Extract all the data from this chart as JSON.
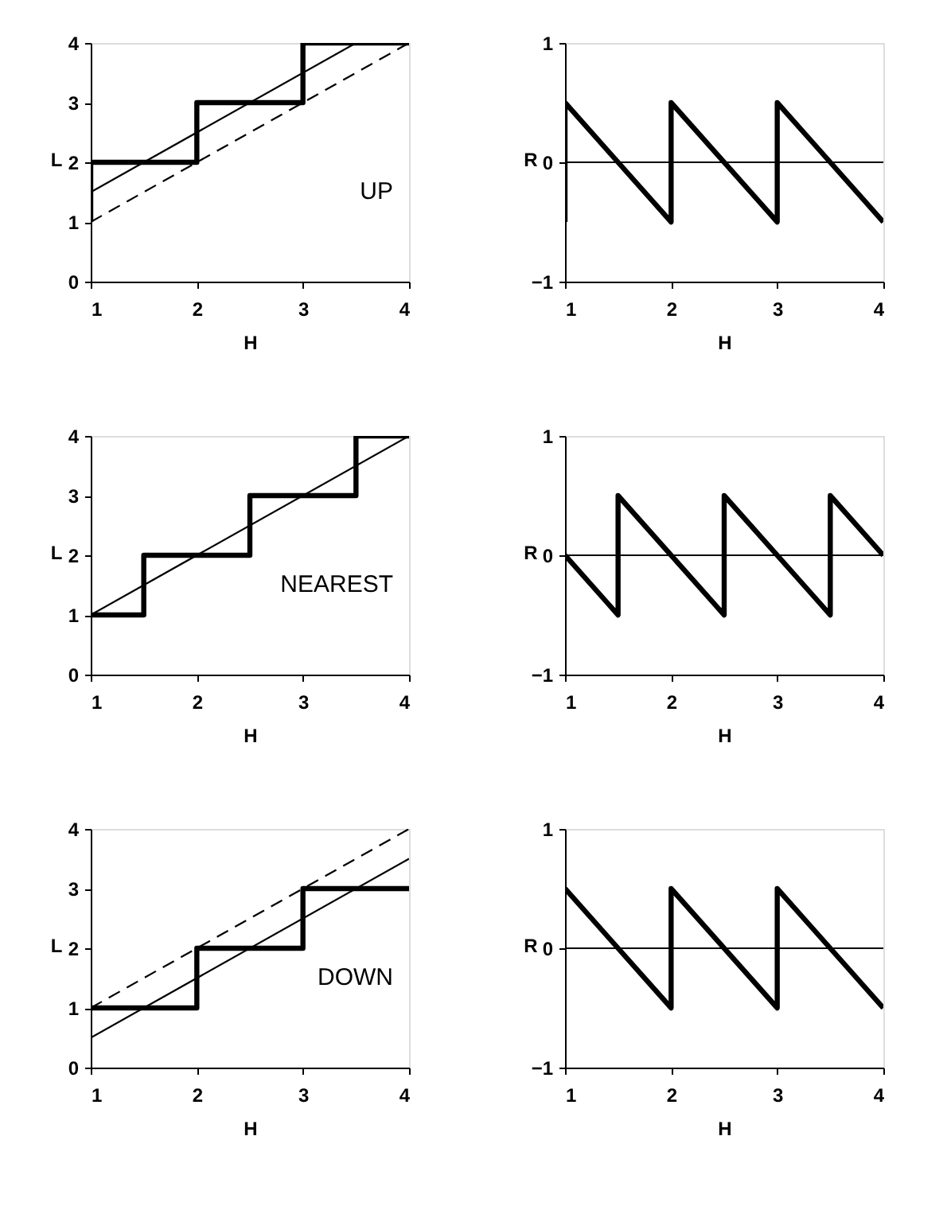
{
  "chart_data": [
    {
      "type": "line",
      "xlabel": "H",
      "ylabel": "L",
      "annotations": [
        "UP"
      ],
      "xlim": [
        1,
        4
      ],
      "ylim": [
        0,
        4
      ],
      "xticks": [
        1,
        2,
        3,
        4
      ],
      "yticks": [
        0,
        1,
        2,
        3,
        4
      ],
      "grid": false,
      "series": [
        {
          "color": "#000000",
          "line_style": "solid",
          "x": [
            1,
            1,
            2,
            2,
            3,
            3,
            4
          ],
          "values": [
            1,
            2,
            2,
            3,
            3,
            4,
            4
          ]
        },
        {
          "color": "#000000",
          "line_style": "solid",
          "x": [
            1,
            3.5
          ],
          "values": [
            1.5,
            4
          ]
        },
        {
          "color": "#000000",
          "line_style": "dashed",
          "x": [
            1,
            4
          ],
          "values": [
            1,
            4
          ]
        }
      ]
    },
    {
      "type": "line",
      "xlabel": "H",
      "ylabel": "R",
      "xlim": [
        1,
        4
      ],
      "ylim": [
        -1,
        1
      ],
      "xticks": [
        1,
        2,
        3,
        4
      ],
      "yticks": [
        -1,
        0,
        1
      ],
      "grid": false,
      "ref_lines": [
        {
          "axis": "y",
          "value": 0
        }
      ],
      "series": [
        {
          "color": "#000000",
          "line_style": "solid",
          "x": [
            1,
            1,
            2,
            2,
            3,
            3,
            4
          ],
          "values": [
            -0.5,
            0.5,
            -0.5,
            0.5,
            -0.5,
            0.5,
            -0.5
          ]
        }
      ]
    },
    {
      "type": "line",
      "xlabel": "H",
      "ylabel": "L",
      "annotations": [
        "NEAREST"
      ],
      "xlim": [
        1,
        4
      ],
      "ylim": [
        0,
        4
      ],
      "xticks": [
        1,
        2,
        3,
        4
      ],
      "yticks": [
        0,
        1,
        2,
        3,
        4
      ],
      "grid": false,
      "series": [
        {
          "color": "#000000",
          "line_style": "solid",
          "x": [
            1,
            1.5,
            1.5,
            2.5,
            2.5,
            3.5,
            3.5,
            4
          ],
          "values": [
            1,
            1,
            2,
            2,
            3,
            3,
            4,
            4
          ]
        },
        {
          "color": "#000000",
          "line_style": "solid",
          "x": [
            1,
            4
          ],
          "values": [
            1,
            4
          ]
        }
      ]
    },
    {
      "type": "line",
      "xlabel": "H",
      "ylabel": "R",
      "xlim": [
        1,
        4
      ],
      "ylim": [
        -1,
        1
      ],
      "xticks": [
        1,
        2,
        3,
        4
      ],
      "yticks": [
        -1,
        0,
        1
      ],
      "grid": false,
      "ref_lines": [
        {
          "axis": "y",
          "value": 0
        }
      ],
      "series": [
        {
          "color": "#000000",
          "line_style": "solid",
          "x": [
            1,
            1.5,
            1.5,
            2.5,
            2.5,
            3.5,
            3.5,
            4
          ],
          "values": [
            0,
            -0.5,
            0.5,
            -0.5,
            0.5,
            -0.5,
            0.5,
            0
          ]
        }
      ]
    },
    {
      "type": "line",
      "xlabel": "H",
      "ylabel": "L",
      "annotations": [
        "DOWN"
      ],
      "xlim": [
        1,
        4
      ],
      "ylim": [
        0,
        4
      ],
      "xticks": [
        1,
        2,
        3,
        4
      ],
      "yticks": [
        0,
        1,
        2,
        3,
        4
      ],
      "grid": false,
      "series": [
        {
          "color": "#000000",
          "line_style": "solid",
          "x": [
            1,
            2,
            2,
            3,
            3,
            4
          ],
          "values": [
            1,
            1,
            2,
            2,
            3,
            3
          ]
        },
        {
          "color": "#000000",
          "line_style": "solid",
          "x": [
            1,
            4
          ],
          "values": [
            0.5,
            3.5
          ]
        },
        {
          "color": "#000000",
          "line_style": "dashed",
          "x": [
            1,
            4
          ],
          "values": [
            1,
            4
          ]
        }
      ]
    },
    {
      "type": "line",
      "xlabel": "H",
      "ylabel": "R",
      "xlim": [
        1,
        4
      ],
      "ylim": [
        -1,
        1
      ],
      "xticks": [
        1,
        2,
        3,
        4
      ],
      "yticks": [
        -1,
        0,
        1
      ],
      "grid": false,
      "ref_lines": [
        {
          "axis": "y",
          "value": 0
        }
      ],
      "series": [
        {
          "color": "#000000",
          "line_style": "solid",
          "x": [
            1,
            2,
            2,
            3,
            3,
            4
          ],
          "values": [
            0.5,
            -0.5,
            0.5,
            -0.5,
            0.5,
            -0.5
          ]
        }
      ]
    }
  ]
}
